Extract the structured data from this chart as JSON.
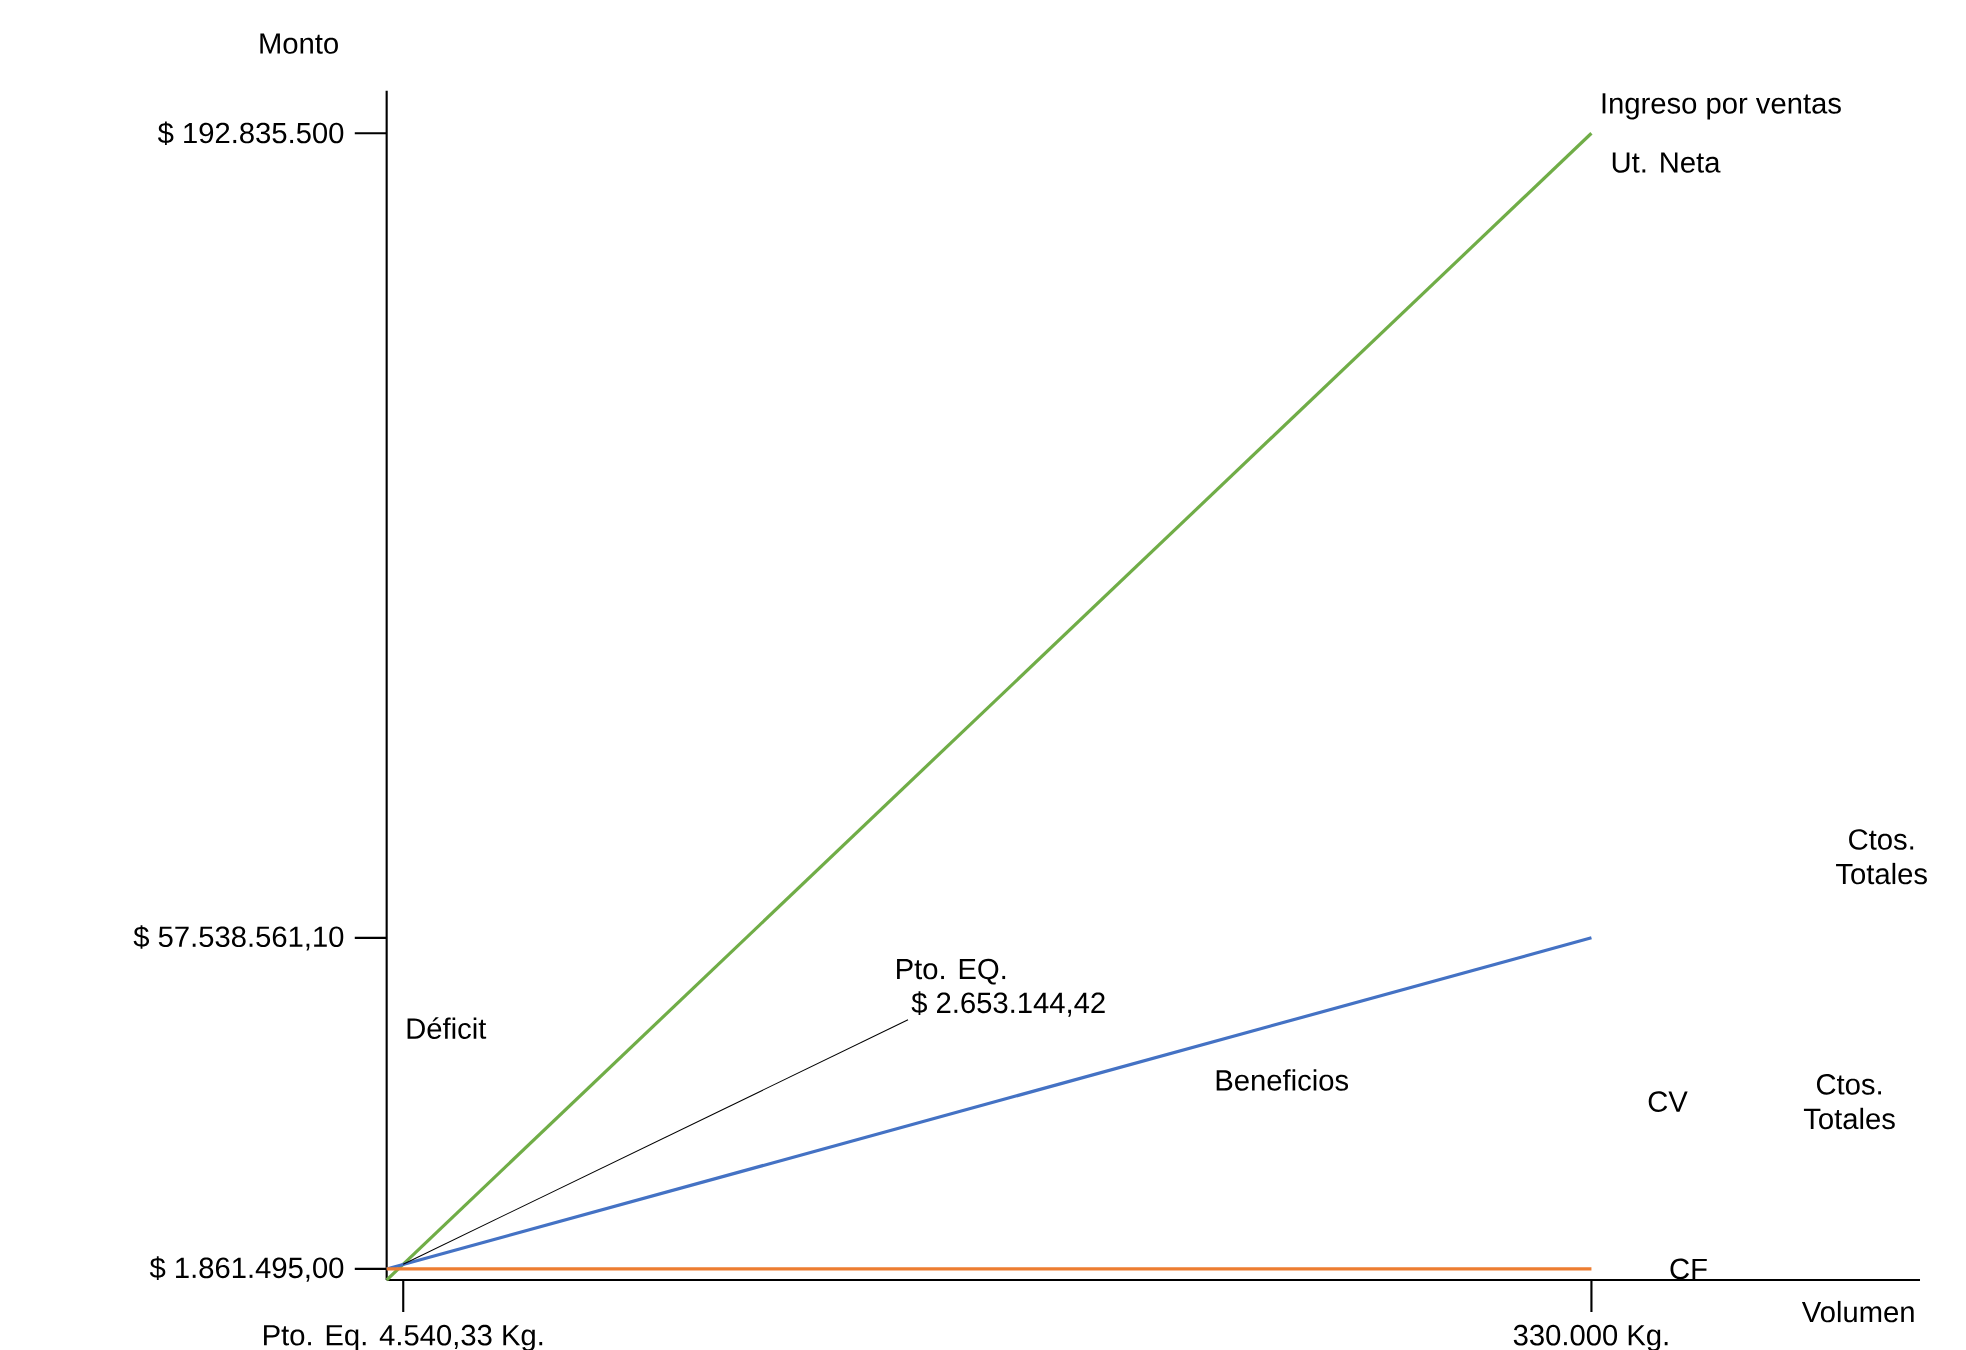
{
  "chart_data": {
    "type": "line",
    "xlabel": "Volumen",
    "ylabel": "Monto",
    "x": [
      0,
      330000
    ],
    "series": [
      {
        "color": "#70ad47",
        "values": [
          0,
          192835500
        ]
      },
      {
        "color": "#4472c4",
        "values": [
          1861495,
          57538561.1
        ]
      },
      {
        "color": "#ed7d31",
        "values": [
          1861495,
          1861495
        ]
      }
    ],
    "xlim": [
      0,
      420000
    ],
    "ylim": [
      0,
      200000000
    ],
    "xticks": [
      {
        "value": 4540.33,
        "label": "Pto. Eq. 4.540,33 Kg."
      },
      {
        "value": 330000,
        "label": "330.000 Kg."
      }
    ],
    "yticks": [
      {
        "value": 1861495,
        "label": "$     1.861.495,00"
      },
      {
        "value": 57538561.1,
        "label": "$ 57.538.561,10"
      },
      {
        "value": 192835500,
        "label": "$ 192.835.500"
      }
    ],
    "annotations": [
      {
        "text": "Ingreso por ventas",
        "x": 330000,
        "y": 192835500
      },
      {
        "text": "Ut. Neta",
        "x": 330000,
        "y": 192835500
      },
      "Ctos. Totales",
      "CV",
      "Ctos. Totales",
      {
        "text": "CF",
        "x": 330000,
        "y": 1861495
      },
      "Déficit",
      {
        "text": "Beneficios",
        "x": 220000,
        "y": 39000000
      },
      "Pto. EQ.",
      {
        "text": "$ 2.653.144,42",
        "x": 4540.33,
        "y": 2653144.42
      }
    ],
    "grid": false,
    "marker": "none",
    "line_style": "solid"
  }
}
